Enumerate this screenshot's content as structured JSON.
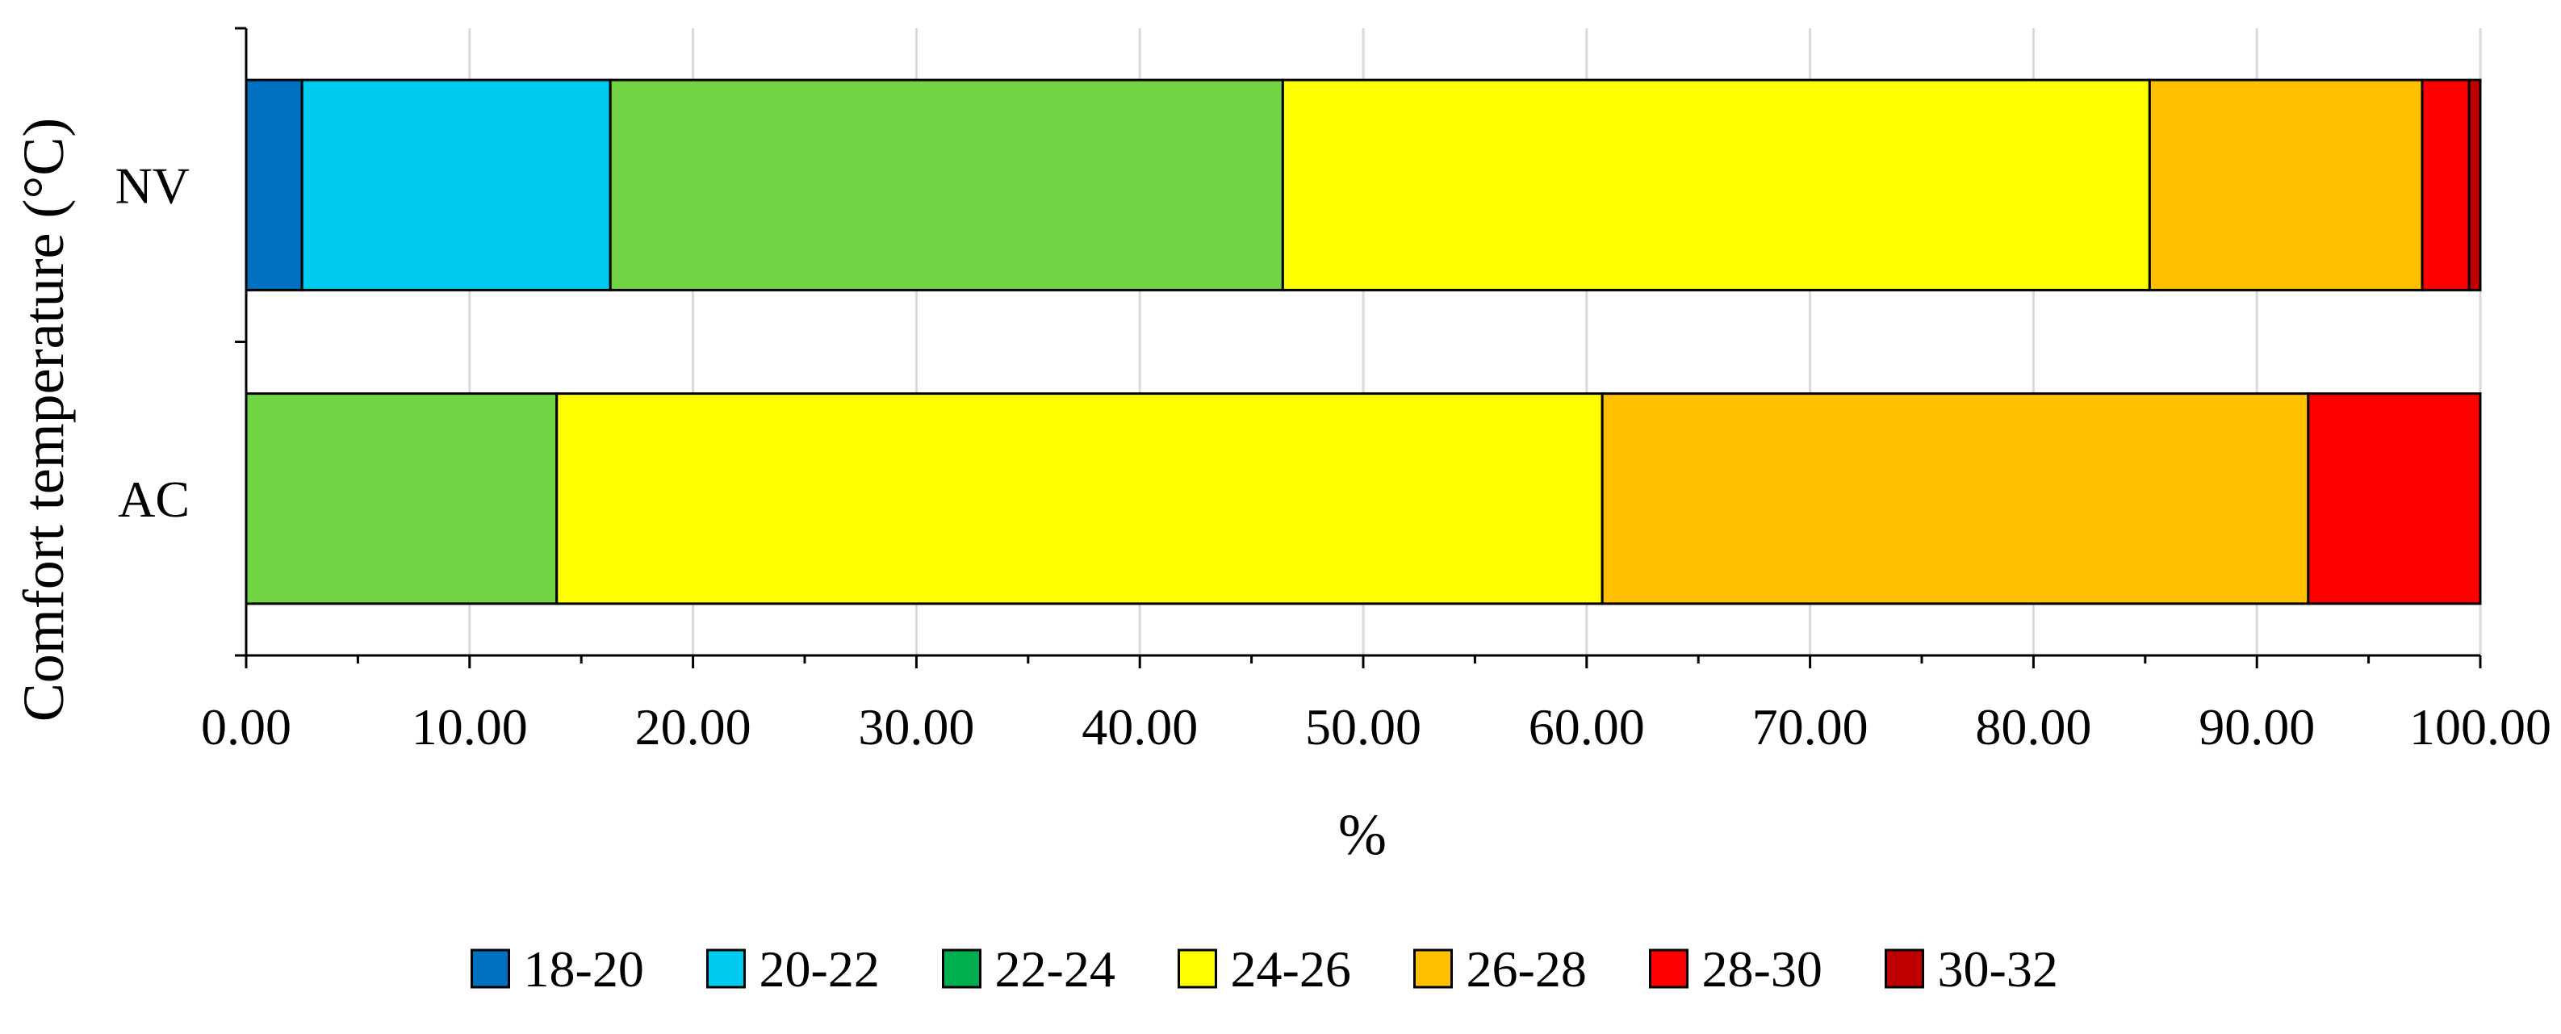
{
  "chart_data": {
    "type": "bar",
    "orientation": "horizontal",
    "stacked": true,
    "title": "",
    "xlabel": "%",
    "ylabel": "Comfort temperature (°C)",
    "xlim": [
      0,
      100
    ],
    "x_ticks": [
      "0.00",
      "10.00",
      "20.00",
      "30.00",
      "40.00",
      "50.00",
      "60.00",
      "70.00",
      "80.00",
      "90.00",
      "100.00"
    ],
    "grid": "vertical",
    "legend_position": "bottom",
    "categories": [
      "NV",
      "AC"
    ],
    "series": [
      {
        "name": "18-20",
        "color": "#0070C0",
        "values": [
          2.5,
          0
        ]
      },
      {
        "name": "20-22",
        "color": "#00CCF2",
        "values": [
          13.8,
          0
        ]
      },
      {
        "name": "22-24",
        "color": "#70D444",
        "legend_color": "#00B050",
        "values": [
          30.1,
          13.9
        ]
      },
      {
        "name": "24-26",
        "color": "#FFFF00",
        "values": [
          38.8,
          46.8
        ]
      },
      {
        "name": "26-28",
        "color": "#FFC000",
        "values": [
          12.2,
          31.6
        ]
      },
      {
        "name": "28-30",
        "color": "#FF0000",
        "values": [
          2.1,
          7.7
        ]
      },
      {
        "name": "30-32",
        "color": "#C00000",
        "values": [
          0.5,
          0
        ]
      }
    ]
  }
}
